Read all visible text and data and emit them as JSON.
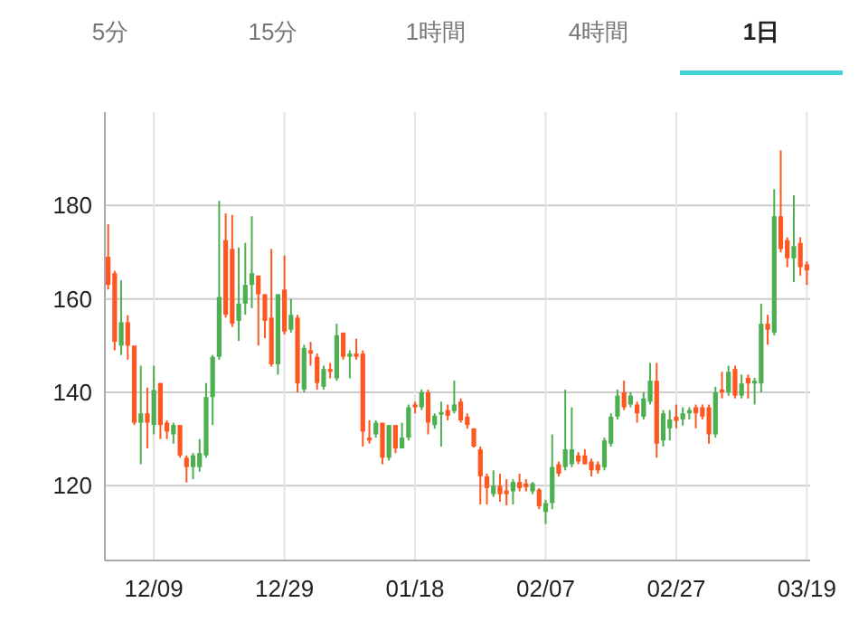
{
  "chart_data": [
    {
      "type": "other",
      "annotations": [
        "5分",
        "15分",
        "1時間",
        "4時間",
        "1日"
      ]
    },
    {
      "type": "candlestick",
      "ylim": [
        104,
        200
      ],
      "yticks": [
        120,
        140,
        160,
        180
      ],
      "grid": true,
      "categories": [
        null,
        null,
        null,
        null,
        null,
        null,
        null,
        "12/09",
        null,
        null,
        null,
        null,
        null,
        null,
        null,
        null,
        null,
        null,
        null,
        null,
        null,
        null,
        null,
        null,
        null,
        null,
        null,
        "12/29",
        null,
        null,
        null,
        null,
        null,
        null,
        null,
        null,
        null,
        null,
        null,
        null,
        null,
        null,
        null,
        null,
        null,
        null,
        null,
        "01/18",
        null,
        null,
        null,
        null,
        null,
        null,
        null,
        null,
        null,
        null,
        null,
        null,
        null,
        null,
        null,
        null,
        null,
        null,
        null,
        "02/07",
        null,
        null,
        null,
        null,
        null,
        null,
        null,
        null,
        null,
        null,
        null,
        null,
        null,
        null,
        null,
        null,
        null,
        null,
        null,
        "02/27",
        null,
        null,
        null,
        null,
        null,
        null,
        null,
        null,
        null,
        null,
        null,
        null,
        null,
        null,
        null,
        null,
        null,
        null,
        null,
        "03/19"
      ],
      "ohlc": [
        [
          169,
          176,
          162,
          163
        ],
        [
          165.5,
          166,
          149,
          150.8
        ],
        [
          150,
          164,
          148,
          155
        ],
        [
          155,
          156.5,
          147,
          150
        ],
        [
          150,
          150,
          133,
          133.5
        ],
        [
          133.5,
          145.7,
          124.6,
          135.5
        ],
        [
          135.5,
          141,
          128,
          133.5
        ],
        [
          133,
          145.7,
          131,
          140.5
        ],
        [
          142,
          142,
          130,
          133
        ],
        [
          133.5,
          134,
          130,
          131.6
        ],
        [
          131,
          133.5,
          129,
          133
        ],
        [
          133,
          133,
          126,
          126.5
        ],
        [
          126,
          126.5,
          120.7,
          124
        ],
        [
          124,
          127,
          121.4,
          126.5
        ],
        [
          124,
          130,
          123,
          127
        ],
        [
          126.5,
          142,
          126,
          139
        ],
        [
          139,
          148,
          133,
          147.6
        ],
        [
          147.6,
          181,
          147,
          160.4
        ],
        [
          172.6,
          178.3,
          156,
          156.6
        ],
        [
          170.7,
          178,
          154,
          154.7
        ],
        [
          155.3,
          171,
          151,
          159
        ],
        [
          159,
          172,
          156.6,
          163
        ],
        [
          163,
          177.7,
          158,
          165.5
        ],
        [
          165,
          165,
          150,
          161
        ],
        [
          161,
          161,
          151.6,
          155.3
        ],
        [
          156,
          170.7,
          145.5,
          146
        ],
        [
          146,
          161,
          143.8,
          161
        ],
        [
          162,
          169.3,
          152.4,
          153
        ],
        [
          153.4,
          160,
          152.8,
          156.6
        ],
        [
          156,
          156.6,
          140,
          141.9
        ],
        [
          140.6,
          150.2,
          140,
          149.5
        ],
        [
          149,
          150.8,
          145.7,
          148.3
        ],
        [
          147.6,
          148.3,
          140.6,
          142
        ],
        [
          141.2,
          145.7,
          140.6,
          145
        ],
        [
          145,
          146.3,
          143,
          144.4
        ],
        [
          143,
          154.7,
          142.5,
          152.2
        ],
        [
          152.8,
          152.8,
          147,
          147.6
        ],
        [
          147.6,
          149,
          143,
          148.3
        ],
        [
          148.3,
          151.5,
          147,
          147.6
        ],
        [
          148.3,
          149,
          128.4,
          131.6
        ],
        [
          130.3,
          134,
          129,
          129.7
        ],
        [
          131,
          134,
          130.3,
          133.5
        ],
        [
          133.5,
          133.5,
          124.6,
          126
        ],
        [
          126,
          133,
          125.4,
          133
        ],
        [
          133,
          133,
          127,
          128
        ],
        [
          128,
          133.5,
          128,
          130.3
        ],
        [
          130.3,
          137.4,
          129.7,
          136.8
        ],
        [
          137.4,
          138,
          135.5,
          136.8
        ],
        [
          136.8,
          140.6,
          136.2,
          140
        ],
        [
          140,
          140.6,
          131,
          133.5
        ],
        [
          133,
          135.5,
          132.2,
          135
        ],
        [
          135.2,
          138,
          128.4,
          135.8
        ],
        [
          136.2,
          137.4,
          134,
          135
        ],
        [
          136,
          142.5,
          135.5,
          137.4
        ],
        [
          138,
          138.7,
          133.5,
          134
        ],
        [
          134.8,
          135.5,
          132.2,
          133
        ],
        [
          132.3,
          132.3,
          128.2,
          128.4
        ],
        [
          127.8,
          128.4,
          116,
          122
        ],
        [
          122,
          122.6,
          116,
          119.5
        ],
        [
          118.2,
          123.3,
          117.6,
          120
        ],
        [
          120,
          122.6,
          116.6,
          118.2
        ],
        [
          119,
          121.4,
          115.8,
          118.2
        ],
        [
          118.8,
          121.4,
          116,
          120.8
        ],
        [
          120.8,
          122.6,
          118.8,
          119.5
        ],
        [
          120.5,
          121.4,
          118.8,
          119.7
        ],
        [
          118.8,
          120.8,
          118.2,
          120.5
        ],
        [
          119.2,
          119.5,
          115,
          115.6
        ],
        [
          114.4,
          117,
          111.8,
          116.3
        ],
        [
          116.3,
          131,
          115,
          124
        ],
        [
          124.6,
          125.2,
          122,
          122.6
        ],
        [
          124,
          140.6,
          123.3,
          127.8
        ],
        [
          124.6,
          136.8,
          124,
          127.8
        ],
        [
          126.5,
          127.2,
          124.6,
          125.2
        ],
        [
          126.5,
          127.8,
          124.6,
          124.6
        ],
        [
          125.2,
          125.8,
          122,
          123.3
        ],
        [
          124.6,
          125.2,
          122.6,
          123.3
        ],
        [
          124,
          130.3,
          123.3,
          129.7
        ],
        [
          129,
          135.5,
          128.4,
          134.8
        ],
        [
          134.8,
          140.6,
          134.2,
          139.3
        ],
        [
          140,
          142.5,
          136.2,
          136.8
        ],
        [
          137.4,
          140,
          136.8,
          139.3
        ],
        [
          137.4,
          138,
          133.5,
          135.5
        ],
        [
          134.8,
          140,
          134.2,
          138.7
        ],
        [
          138,
          146.3,
          137.4,
          142.5
        ],
        [
          142.5,
          146.3,
          126,
          129
        ],
        [
          129.7,
          136.2,
          128.4,
          135.5
        ],
        [
          132.3,
          136.2,
          129.7,
          134.2
        ],
        [
          134.8,
          137.4,
          132.3,
          133.9
        ],
        [
          134.2,
          136.8,
          132.9,
          135.5
        ],
        [
          135.5,
          136.8,
          134.2,
          136.2
        ],
        [
          136.8,
          137.4,
          132.3,
          135.5
        ],
        [
          136.8,
          137.4,
          134.2,
          134.8
        ],
        [
          136.8,
          137.4,
          129,
          131
        ],
        [
          131,
          141.2,
          130.3,
          140
        ],
        [
          140.6,
          144.4,
          138.7,
          140
        ],
        [
          140,
          145.7,
          139.3,
          144.4
        ],
        [
          145,
          145.7,
          138.7,
          139.3
        ],
        [
          139.3,
          143.8,
          138.7,
          141.9
        ],
        [
          143.1,
          143.8,
          138.7,
          141.9
        ],
        [
          141.9,
          143.1,
          137.4,
          142.5
        ],
        [
          141.9,
          159,
          140,
          154.7
        ],
        [
          154.7,
          156.6,
          150.2,
          153.4
        ],
        [
          152.8,
          183.5,
          152.2,
          177.7
        ],
        [
          177.7,
          191.8,
          170,
          170.7
        ],
        [
          172.6,
          173.2,
          166.8,
          168.7
        ],
        [
          168.7,
          182.2,
          163.6,
          171.3
        ],
        [
          172,
          173.2,
          165,
          166.8
        ],
        [
          167.4,
          168,
          163,
          166.1
        ]
      ],
      "colors": [
        "#ff5722",
        "#ff5722",
        "#4caf50",
        "#ff5722",
        "#ff5722",
        "#4caf50",
        "#ff5722",
        "#4caf50",
        "#ff5722",
        "#ff5722",
        "#4caf50",
        "#ff5722",
        "#ff5722",
        "#4caf50",
        "#4caf50",
        "#4caf50",
        "#4caf50",
        "#4caf50",
        "#ff5722",
        "#ff5722",
        "#4caf50",
        "#4caf50",
        "#4caf50",
        "#ff5722",
        "#ff5722",
        "#ff5722",
        "#4caf50",
        "#ff5722",
        "#4caf50",
        "#ff5722",
        "#4caf50",
        "#ff5722",
        "#ff5722",
        "#4caf50",
        "#ff5722",
        "#4caf50",
        "#ff5722",
        "#4caf50",
        "#ff5722",
        "#ff5722",
        "#ff5722",
        "#4caf50",
        "#ff5722",
        "#4caf50",
        "#ff5722",
        "#4caf50",
        "#4caf50",
        "#ff5722",
        "#4caf50",
        "#ff5722",
        "#4caf50",
        "#4caf50",
        "#ff5722",
        "#4caf50",
        "#ff5722",
        "#ff5722",
        "#ff5722",
        "#ff5722",
        "#ff5722",
        "#4caf50",
        "#ff5722",
        "#ff5722",
        "#4caf50",
        "#ff5722",
        "#ff5722",
        "#4caf50",
        "#ff5722",
        "#4caf50",
        "#4caf50",
        "#ff5722",
        "#4caf50",
        "#4caf50",
        "#ff5722",
        "#ff5722",
        "#ff5722",
        "#ff5722",
        "#4caf50",
        "#4caf50",
        "#4caf50",
        "#ff5722",
        "#4caf50",
        "#ff5722",
        "#4caf50",
        "#4caf50",
        "#ff5722",
        "#4caf50",
        "#4caf50",
        "#ff5722",
        "#4caf50",
        "#4caf50",
        "#ff5722",
        "#ff5722",
        "#ff5722",
        "#4caf50",
        "#ff5722",
        "#4caf50",
        "#ff5722",
        "#4caf50",
        "#ff5722",
        "#4caf50",
        "#4caf50",
        "#ff5722",
        "#4caf50",
        "#ff5722",
        "#ff5722",
        "#4caf50",
        "#ff5722",
        "#ff5722"
      ]
    }
  ]
}
